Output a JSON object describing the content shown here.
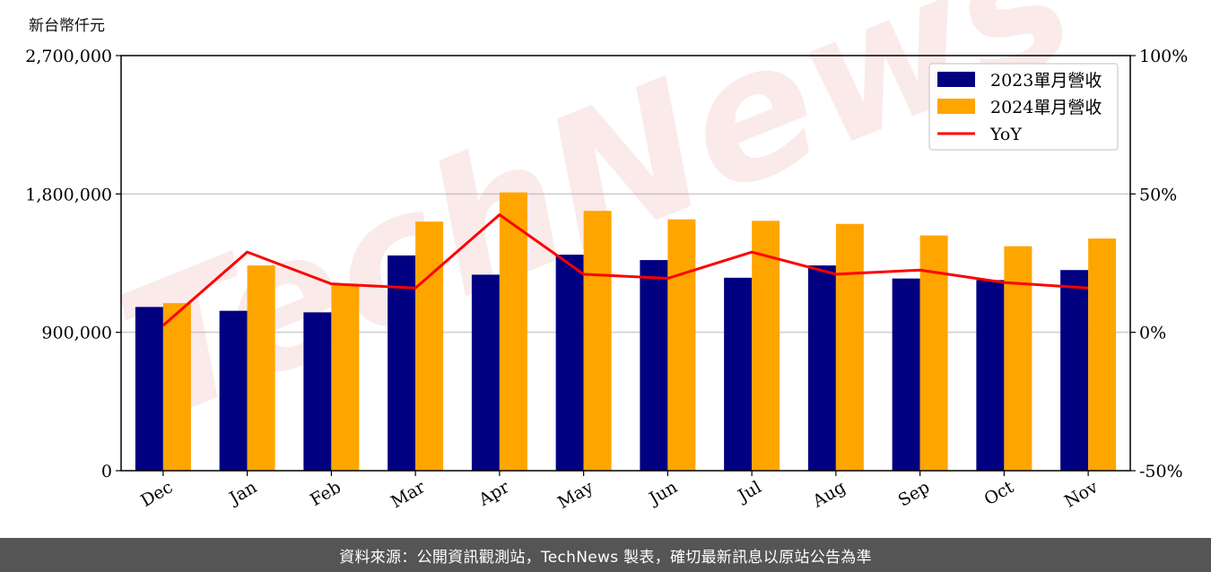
{
  "unit_label": "新台幣仟元",
  "footer_text": "資料來源：公開資訊觀測站，TechNews 製表，確切最新訊息以原站公告為準",
  "watermark_text": "TechNews",
  "chart_data": {
    "type": "bar",
    "categories": [
      "Dec",
      "Jan",
      "Feb",
      "Mar",
      "Apr",
      "May",
      "Jun",
      "Jul",
      "Aug",
      "Sep",
      "Oct",
      "Nov"
    ],
    "series": [
      {
        "name": "2023單月營收",
        "kind": "bar",
        "color": "#000080",
        "values": [
          1065000,
          1040000,
          1030000,
          1400000,
          1275000,
          1405000,
          1370000,
          1255000,
          1335000,
          1250000,
          1240000,
          1305000
        ]
      },
      {
        "name": "2024單月營收",
        "kind": "bar",
        "color": "#FFA500",
        "values": [
          1090000,
          1335000,
          1205000,
          1620000,
          1810000,
          1690000,
          1635000,
          1625000,
          1605000,
          1530000,
          1460000,
          1510000
        ]
      },
      {
        "name": "YoY",
        "kind": "line",
        "axis": "right",
        "color": "#FF0000",
        "values": [
          2.5,
          29.0,
          17.5,
          16.0,
          42.5,
          21.0,
          19.5,
          29.0,
          21.0,
          22.5,
          18.0,
          16.0
        ]
      }
    ],
    "ylim": [
      0,
      2700000
    ],
    "yticks": [
      "0",
      "900,000",
      "1,800,000",
      "2,700,000"
    ],
    "y2lim": [
      -50,
      100
    ],
    "y2ticks": [
      "-50%",
      "0%",
      "50%",
      "100%"
    ],
    "grid": "horizontal",
    "legend": "top-right"
  }
}
